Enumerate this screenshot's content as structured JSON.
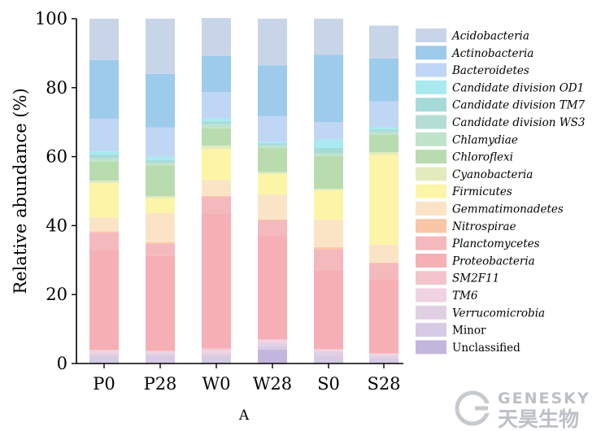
{
  "chart_data": {
    "type": "stacked-bar",
    "panel_label": "A",
    "xlabel": "",
    "ylabel": "Relative abundance (%)",
    "ylim": [
      0,
      100
    ],
    "yticks": [
      0,
      20,
      40,
      60,
      80,
      100
    ],
    "categories": [
      "P0",
      "P28",
      "W0",
      "W28",
      "S0",
      "S28"
    ],
    "legend_placement": "right",
    "series": [
      {
        "name": "Unclassified",
        "italic": false,
        "color": "#c3b6dd",
        "values": [
          0.0,
          0.0,
          0.0,
          4.0,
          0.0,
          0.0
        ]
      },
      {
        "name": "Minor",
        "italic": false,
        "color": "#d6cae5",
        "values": [
          2.0,
          2.0,
          2.0,
          1.0,
          2.0,
          1.5
        ]
      },
      {
        "name": "Verrucomicrobia",
        "italic": true,
        "color": "#e1cfe3",
        "values": [
          1.0,
          1.0,
          1.0,
          1.0,
          1.5,
          0.8
        ]
      },
      {
        "name": "TM6",
        "italic": true,
        "color": "#efd3e2",
        "values": [
          0.8,
          0.5,
          1.0,
          0.8,
          0.5,
          0.5
        ]
      },
      {
        "name": "SM2F11",
        "italic": true,
        "color": "#f3c4cc",
        "values": [
          0.2,
          0.2,
          0.4,
          0.2,
          0.2,
          0.2
        ]
      },
      {
        "name": "Proteobacteria",
        "italic": true,
        "color": "#f6afb4",
        "values": [
          29.0,
          27.5,
          39.0,
          30.0,
          23.0,
          21.5
        ]
      },
      {
        "name": "Planctomycetes",
        "italic": true,
        "color": "#f4b9bd",
        "values": [
          5.0,
          3.5,
          5.0,
          4.5,
          6.0,
          4.5
        ]
      },
      {
        "name": "Nitrospirae",
        "italic": true,
        "color": "#f9c6a6",
        "values": [
          0.3,
          0.5,
          0.2,
          0.3,
          0.5,
          0.3
        ]
      },
      {
        "name": "Gemmatimonadetes",
        "italic": true,
        "color": "#fbe4c5",
        "values": [
          4.0,
          8.5,
          4.6,
          7.2,
          8.0,
          5.2
        ]
      },
      {
        "name": "Firmicutes",
        "italic": true,
        "color": "#fcf5a7",
        "values": [
          10.0,
          4.3,
          9.0,
          6.0,
          8.5,
          26.0
        ]
      },
      {
        "name": "Cyanobacteria",
        "italic": true,
        "color": "#e3ebbd",
        "values": [
          0.7,
          0.5,
          1.0,
          0.5,
          0.5,
          0.8
        ]
      },
      {
        "name": "Chloroflexi",
        "italic": true,
        "color": "#b9dcae",
        "values": [
          5.5,
          9.0,
          5.0,
          7.0,
          9.5,
          5.0
        ]
      },
      {
        "name": "Chlamydiae",
        "italic": true,
        "color": "#c0e3cc",
        "values": [
          0.8,
          0.5,
          1.0,
          0.5,
          0.5,
          0.5
        ]
      },
      {
        "name": "Candidate division WS3",
        "italic": true,
        "color": "#b4ddd6",
        "values": [
          0.5,
          0.5,
          0.3,
          0.3,
          0.5,
          0.5
        ]
      },
      {
        "name": "Candidate division TM7",
        "italic": true,
        "color": "#a4dbd9",
        "values": [
          0.7,
          0.5,
          0.7,
          0.5,
          1.3,
          0.5
        ]
      },
      {
        "name": "Candidate division OD1",
        "italic": true,
        "color": "#a8eaf0",
        "values": [
          1.0,
          1.0,
          1.0,
          0.5,
          2.5,
          0.7
        ]
      },
      {
        "name": "Bacteroidetes",
        "italic": true,
        "color": "#bfd6f4",
        "values": [
          9.5,
          8.5,
          7.5,
          7.5,
          5.0,
          7.5
        ]
      },
      {
        "name": "Actinobacteria",
        "italic": true,
        "color": "#9ccbeb",
        "values": [
          17.0,
          15.5,
          10.5,
          14.7,
          19.5,
          12.5
        ]
      },
      {
        "name": "Acidobacteria",
        "italic": true,
        "color": "#c8d5e8",
        "values": [
          12.0,
          16.0,
          11.0,
          13.5,
          10.5,
          9.5
        ]
      }
    ]
  },
  "watermark": {
    "text_en": "GENESKY",
    "text_cn": "天昊生物"
  }
}
